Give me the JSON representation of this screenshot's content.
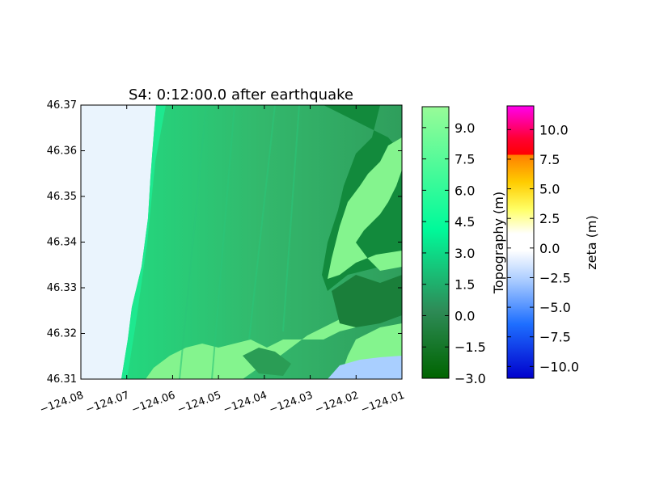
{
  "chart_data": {
    "type": "heatmap",
    "title": "S4: 0:12:00.0 after earthquake",
    "xlim": [
      -124.08,
      -124.01
    ],
    "ylim": [
      46.31,
      46.37
    ],
    "x_ticks": [
      -124.08,
      -124.07,
      -124.06,
      -124.05,
      -124.04,
      -124.03,
      -124.02,
      -124.01
    ],
    "x_tick_labels": [
      "−124.08",
      "−124.07",
      "−124.06",
      "−124.05",
      "−124.04",
      "−124.03",
      "−124.02",
      "−124.01"
    ],
    "y_ticks": [
      46.31,
      46.32,
      46.33,
      46.34,
      46.35,
      46.36,
      46.37
    ],
    "y_tick_labels": [
      "46.31",
      "46.32",
      "46.33",
      "46.34",
      "46.35",
      "46.36",
      "46.37"
    ],
    "grid": false,
    "colorbars": [
      {
        "label": "Topography (m)",
        "range": [
          -3.0,
          10.0
        ],
        "ticks": [
          -3.0,
          -1.5,
          0.0,
          1.5,
          3.0,
          4.5,
          6.0,
          7.5,
          9.0
        ],
        "tick_labels": [
          "−3.0",
          "−1.5",
          "0.0",
          "1.5",
          "3.0",
          "4.5",
          "6.0",
          "7.5",
          "9.0"
        ],
        "colors": [
          "#006400",
          "#3cb371",
          "#00fa9a",
          "#98fb98"
        ]
      },
      {
        "label": "zeta (m)",
        "range": [
          -11.0,
          12.0
        ],
        "ticks": [
          -10.0,
          -7.5,
          -5.0,
          -2.5,
          0.0,
          2.5,
          5.0,
          7.5,
          10.0
        ],
        "tick_labels": [
          "−10.0",
          "−7.5",
          "−5.0",
          "−2.5",
          "0.0",
          "2.5",
          "5.0",
          "7.5",
          "10.0"
        ],
        "colors": [
          "#0000cc",
          "#1e90ff",
          "#ffffff",
          "#ffff00",
          "#ff8c00",
          "#ff0000",
          "#ff00ff"
        ]
      }
    ]
  }
}
